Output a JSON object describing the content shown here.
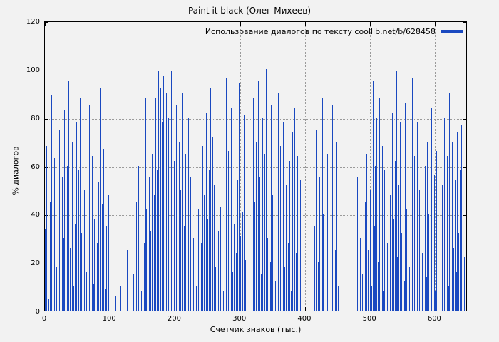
{
  "page": {
    "background": "#f2f2f2"
  },
  "chart_data": {
    "type": "bar",
    "title": "Paint it black (Олег Михеев)",
    "legend": {
      "label": "Использование диалогов по тексту coollib.net/b/628458",
      "position": "top-right"
    },
    "xlabel": "Счетчик знаков (тыс.)",
    "ylabel": "% диалогов",
    "xlim": [
      0,
      650
    ],
    "ylim": [
      0,
      120
    ],
    "x_ticks": [
      0,
      100,
      200,
      300,
      400,
      500,
      600
    ],
    "y_ticks": [
      0,
      20,
      40,
      60,
      80,
      100,
      120
    ],
    "grid": "dotted",
    "bar_color": "#1a49c0",
    "x_start": 0,
    "x_step": 2,
    "values": [
      34,
      68,
      12,
      5,
      45,
      89,
      22,
      63,
      97,
      18,
      40,
      75,
      8,
      55,
      30,
      83,
      14,
      60,
      95,
      26,
      47,
      70,
      10,
      36,
      78,
      20,
      58,
      88,
      32,
      6,
      50,
      72,
      16,
      42,
      85,
      24,
      64,
      11,
      38,
      80,
      28,
      53,
      92,
      19,
      44,
      67,
      9,
      35,
      76,
      48,
      86,
      0,
      0,
      0,
      6,
      0,
      0,
      0,
      10,
      0,
      12,
      0,
      0,
      25,
      0,
      5,
      0,
      0,
      15,
      0,
      45,
      95,
      60,
      35,
      8,
      50,
      28,
      88,
      42,
      15,
      55,
      33,
      65,
      25,
      48,
      88,
      58,
      99,
      85,
      92,
      78,
      97,
      83,
      90,
      95,
      80,
      88,
      99,
      75,
      62,
      40,
      85,
      25,
      70,
      50,
      15,
      90,
      35,
      65,
      45,
      80,
      20,
      55,
      95,
      30,
      75,
      10,
      60,
      42,
      88,
      28,
      68,
      48,
      12,
      82,
      38,
      58,
      92,
      22,
      72,
      52,
      18,
      86,
      33,
      63,
      43,
      78,
      8,
      56,
      96,
      26,
      66,
      46,
      84,
      16,
      36,
      76,
      24,
      54,
      94,
      31,
      61,
      41,
      81,
      21,
      51,
      0,
      4,
      0,
      0,
      88,
      45,
      70,
      25,
      95,
      55,
      15,
      80,
      38,
      65,
      100,
      30,
      60,
      20,
      85,
      48,
      72,
      12,
      58,
      90,
      35,
      68,
      42,
      78,
      18,
      52,
      98,
      28,
      62,
      8,
      74,
      44,
      84,
      24,
      64,
      34,
      54,
      0,
      0,
      5,
      0,
      0,
      0,
      8,
      0,
      60,
      0,
      35,
      75,
      0,
      20,
      55,
      0,
      88,
      40,
      0,
      15,
      65,
      30,
      0,
      50,
      85,
      0,
      25,
      70,
      10,
      45,
      0,
      0,
      0,
      0,
      0,
      0,
      0,
      0,
      0,
      0,
      0,
      0,
      0,
      55,
      85,
      30,
      70,
      15,
      90,
      45,
      65,
      25,
      75,
      50,
      10,
      95,
      35,
      60,
      80,
      20,
      88,
      40,
      68,
      8,
      58,
      92,
      28,
      72,
      48,
      16,
      82,
      38,
      62,
      99,
      22,
      52,
      78,
      32,
      66,
      12,
      86,
      42,
      74,
      18,
      56,
      96,
      26,
      64,
      34,
      78,
      0,
      50,
      88,
      24,
      0,
      60,
      14,
      70,
      40,
      0,
      84,
      30,
      56,
      8,
      66,
      44,
      0,
      76,
      52,
      20,
      80,
      36,
      64,
      10,
      90,
      46,
      70,
      26,
      54,
      16,
      74,
      32,
      58,
      77,
      40,
      22
    ]
  }
}
